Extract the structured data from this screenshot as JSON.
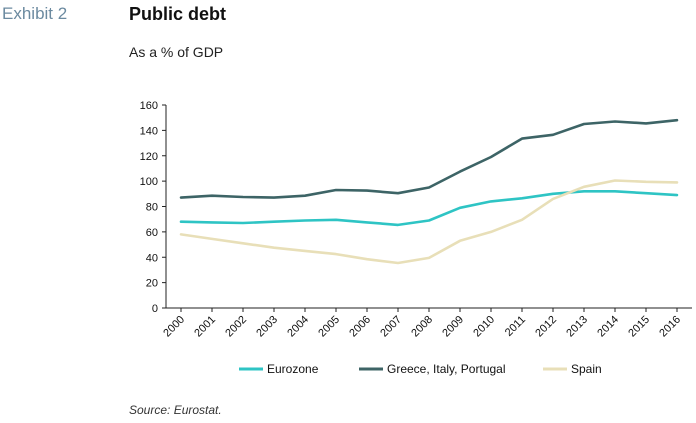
{
  "header": {
    "exhibit": "Exhibit 2",
    "title": "Public debt",
    "subtitle": "As a % of GDP"
  },
  "footer": {
    "source": "Source: Eurostat."
  },
  "chart_data": {
    "type": "line",
    "x": [
      "2000",
      "2001",
      "2002",
      "2003",
      "2004",
      "2005",
      "2006",
      "2007",
      "2008",
      "2009",
      "2010",
      "2011",
      "2012",
      "2013",
      "2014",
      "2015",
      "2016"
    ],
    "ylim": [
      0,
      160
    ],
    "yticks": [
      0,
      20,
      40,
      60,
      80,
      100,
      120,
      140,
      160
    ],
    "grid": false,
    "legend_position": "bottom",
    "series": [
      {
        "name": "Eurozone",
        "color": "#2ec4c4",
        "values": [
          68,
          67.5,
          67,
          68,
          69,
          69.5,
          67.5,
          65.5,
          69,
          79,
          84,
          86.5,
          90,
          92,
          92,
          90.5,
          89
        ]
      },
      {
        "name": "Greece, Italy, Portugal",
        "color": "#3d6466",
        "values": [
          87,
          88.5,
          87.5,
          87,
          88.5,
          93,
          92.5,
          90.5,
          95,
          107.5,
          119,
          133.5,
          136.5,
          145,
          147,
          145.5,
          148
        ]
      },
      {
        "name": "Spain",
        "color": "#e8dfb8",
        "values": [
          58,
          54.5,
          51,
          47.5,
          45,
          42.5,
          38.5,
          35.5,
          39.5,
          53,
          60,
          69.5,
          86,
          95.5,
          100.5,
          99.5,
          99
        ]
      }
    ]
  }
}
